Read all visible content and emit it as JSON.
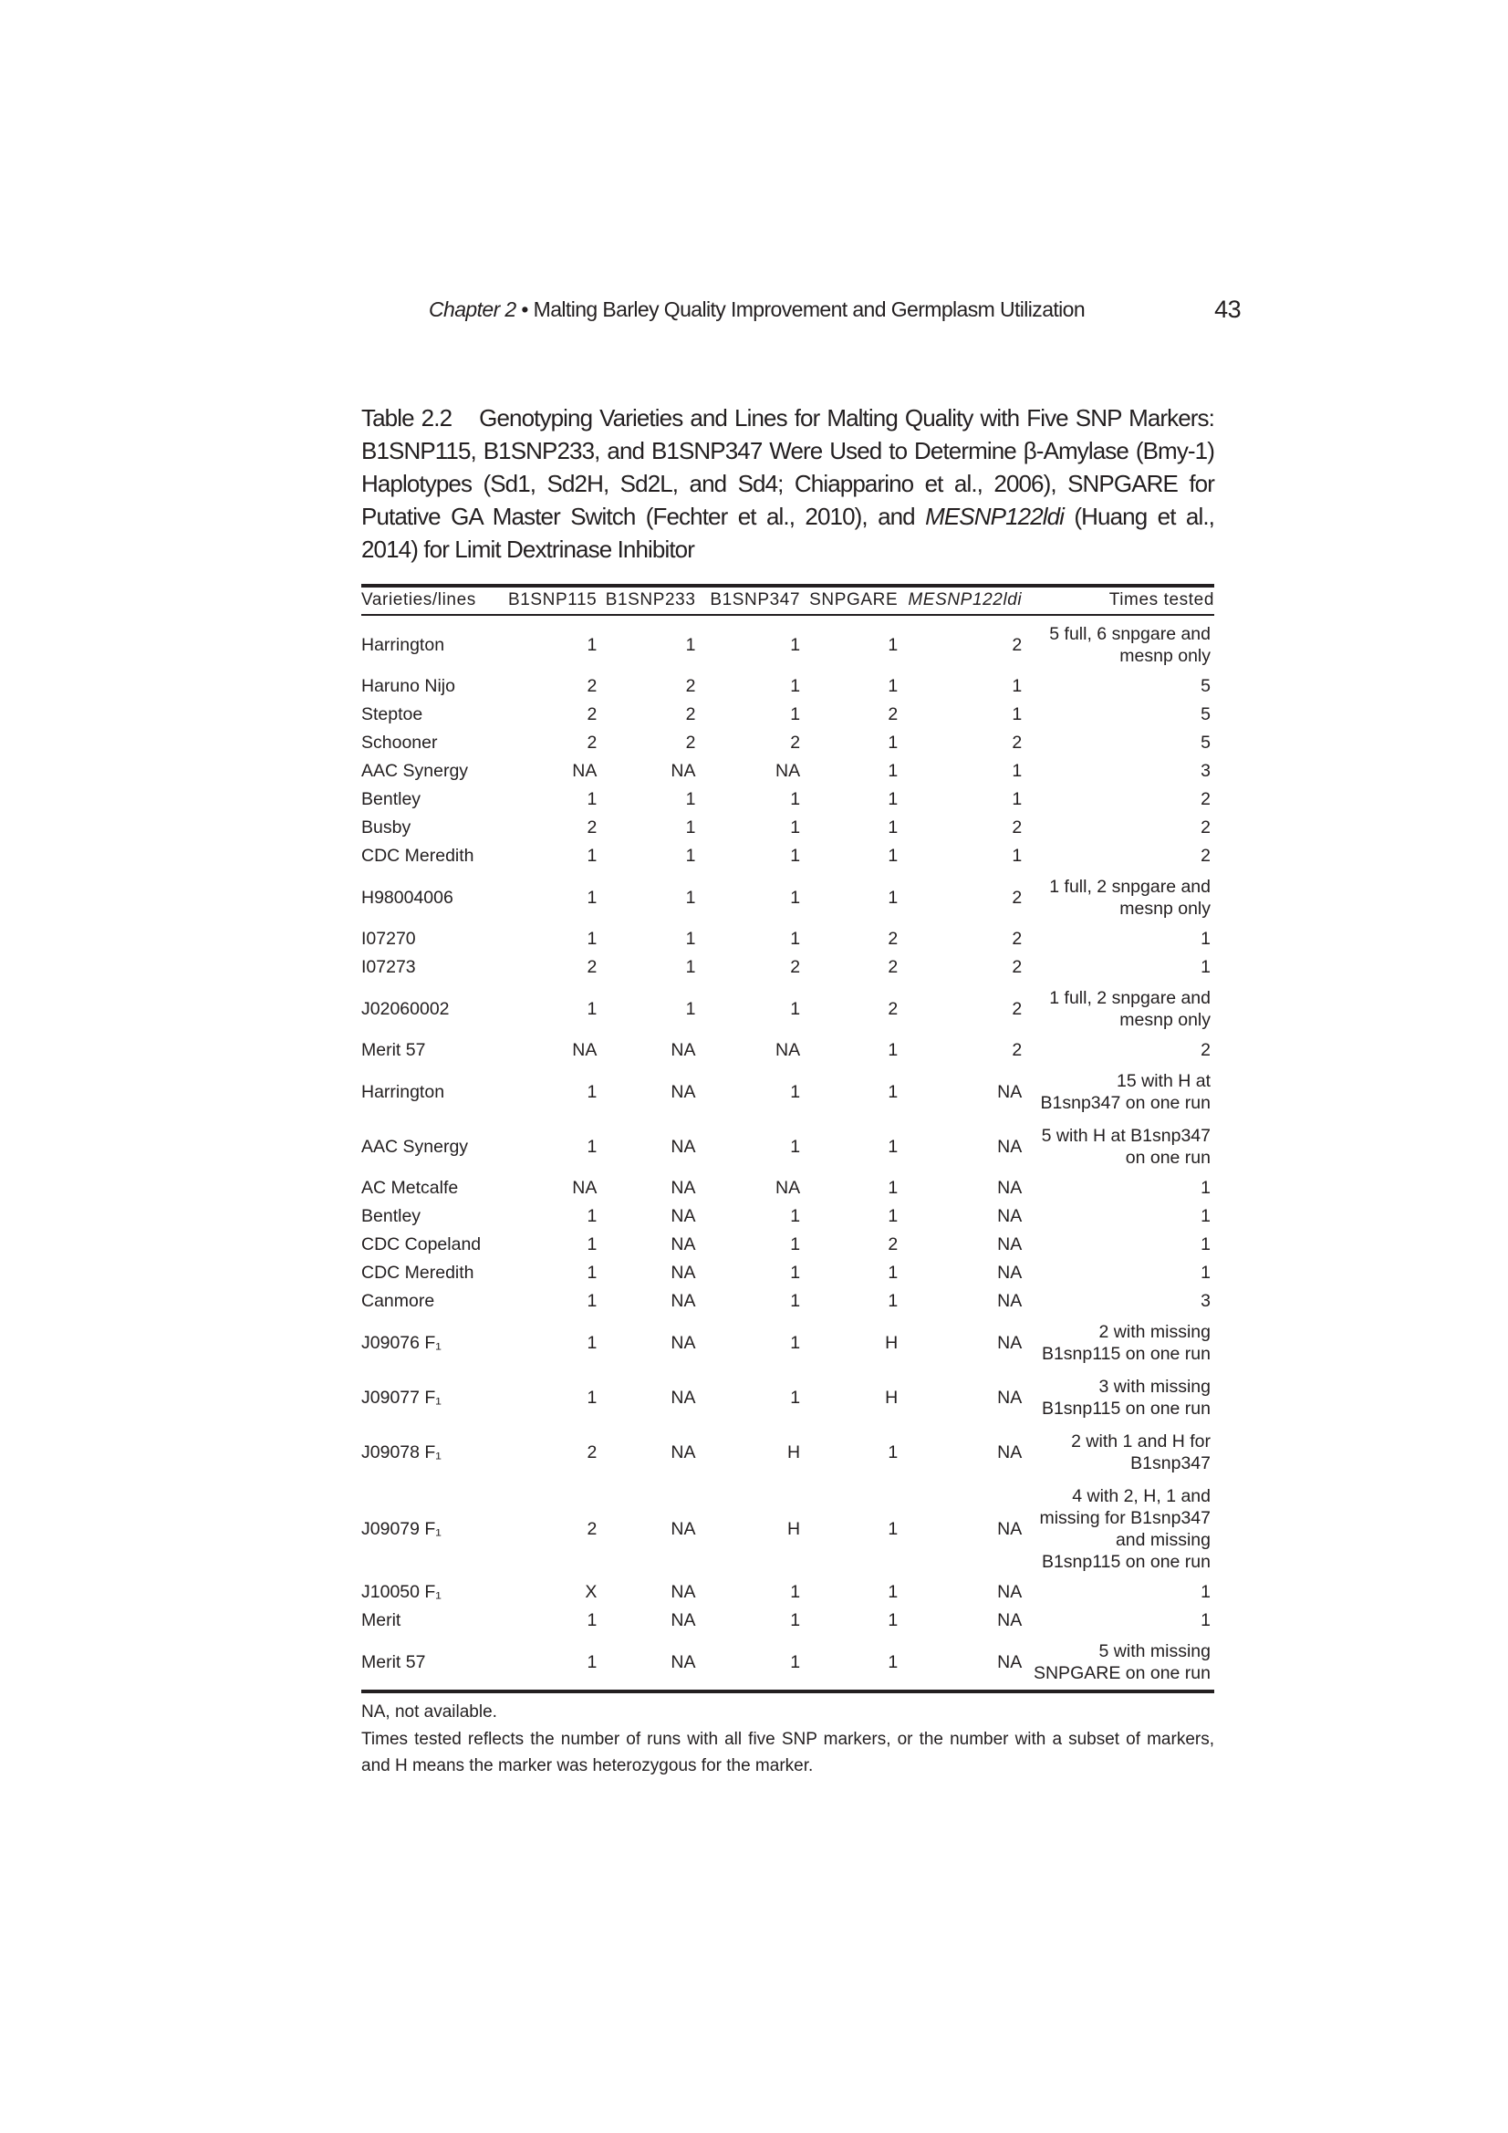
{
  "running_head": {
    "chapter": "Chapter 2",
    "bullet": "•",
    "title": "Malting Barley Quality Improvement and Germplasm Utilization",
    "page_number": "43"
  },
  "caption": {
    "label": "Table 2.2",
    "text_before": "Genotyping Varieties and Lines for Malting Quality with Five SNP Markers: B1SNP115, B1SNP233, and B1SNP347 Were Used to Determine β-Amylase (Bmy-1) Haplotypes (Sd1, Sd2H, Sd2L, and Sd4; Chiapparino et al., 2006), SNPGARE for Putative GA Master Switch (Fechter et al., 2010), and",
    "italic": "MESNP122ldi",
    "text_after": "(Huang et al., 2014) for Limit Dextrinase Inhibitor"
  },
  "table": {
    "headers": [
      "Varieties/lines",
      "B1SNP115",
      "B1SNP233",
      "B1SNP347",
      "SNPGARE",
      "MESNP122ldi",
      "Times tested"
    ],
    "rows": [
      [
        "Harrington",
        "1",
        "1",
        "1",
        "1",
        "2",
        "5 full, 6 snpgare and\nmesnp only"
      ],
      [
        "Haruno Nijo",
        "2",
        "2",
        "1",
        "1",
        "1",
        "5"
      ],
      [
        "Steptoe",
        "2",
        "2",
        "1",
        "2",
        "1",
        "5"
      ],
      [
        "Schooner",
        "2",
        "2",
        "2",
        "1",
        "2",
        "5"
      ],
      [
        "AAC Synergy",
        "NA",
        "NA",
        "NA",
        "1",
        "1",
        "3"
      ],
      [
        "Bentley",
        "1",
        "1",
        "1",
        "1",
        "1",
        "2"
      ],
      [
        "Busby",
        "2",
        "1",
        "1",
        "1",
        "2",
        "2"
      ],
      [
        "CDC Meredith",
        "1",
        "1",
        "1",
        "1",
        "1",
        "2"
      ],
      [
        "H98004006",
        "1",
        "1",
        "1",
        "1",
        "2",
        "1 full, 2 snpgare and\nmesnp only"
      ],
      [
        "I07270",
        "1",
        "1",
        "1",
        "2",
        "2",
        "1"
      ],
      [
        "I07273",
        "2",
        "1",
        "2",
        "2",
        "2",
        "1"
      ],
      [
        "J02060002",
        "1",
        "1",
        "1",
        "2",
        "2",
        "1 full, 2 snpgare and\nmesnp only"
      ],
      [
        "Merit 57",
        "NA",
        "NA",
        "NA",
        "1",
        "2",
        "2"
      ],
      [
        "Harrington",
        "1",
        "NA",
        "1",
        "1",
        "NA",
        "15 with H at\nB1snp347 on one run"
      ],
      [
        "AAC Synergy",
        "1",
        "NA",
        "1",
        "1",
        "NA",
        "5 with H at B1snp347\non one run"
      ],
      [
        "AC Metcalfe",
        "NA",
        "NA",
        "NA",
        "1",
        "NA",
        "1"
      ],
      [
        "Bentley",
        "1",
        "NA",
        "1",
        "1",
        "NA",
        "1"
      ],
      [
        "CDC Copeland",
        "1",
        "NA",
        "1",
        "2",
        "NA",
        "1"
      ],
      [
        "CDC Meredith",
        "1",
        "NA",
        "1",
        "1",
        "NA",
        "1"
      ],
      [
        "Canmore",
        "1",
        "NA",
        "1",
        "1",
        "NA",
        "3"
      ],
      [
        "J09076 F₁",
        "1",
        "NA",
        "1",
        "H",
        "NA",
        "2 with missing\nB1snp115 on one run"
      ],
      [
        "J09077 F₁",
        "1",
        "NA",
        "1",
        "H",
        "NA",
        "3 with missing\nB1snp115 on one run"
      ],
      [
        "J09078 F₁",
        "2",
        "NA",
        "H",
        "1",
        "NA",
        "2 with 1 and H for\nB1snp347"
      ],
      [
        "J09079 F₁",
        "2",
        "NA",
        "H",
        "1",
        "NA",
        "4 with 2, H, 1 and\nmissing for B1snp347\nand missing\nB1snp115 on one run"
      ],
      [
        "J10050 F₁",
        "X",
        "NA",
        "1",
        "1",
        "NA",
        "1"
      ],
      [
        "Merit",
        "1",
        "NA",
        "1",
        "1",
        "NA",
        "1"
      ],
      [
        "Merit 57",
        "1",
        "NA",
        "1",
        "1",
        "NA",
        "5 with missing\nSNPGARE on one run"
      ]
    ]
  },
  "notes": [
    "NA, not available.",
    "Times tested reflects the number of runs with all five SNP markers, or the number with a subset of markers, and H means the marker was heterozygous for the marker."
  ]
}
